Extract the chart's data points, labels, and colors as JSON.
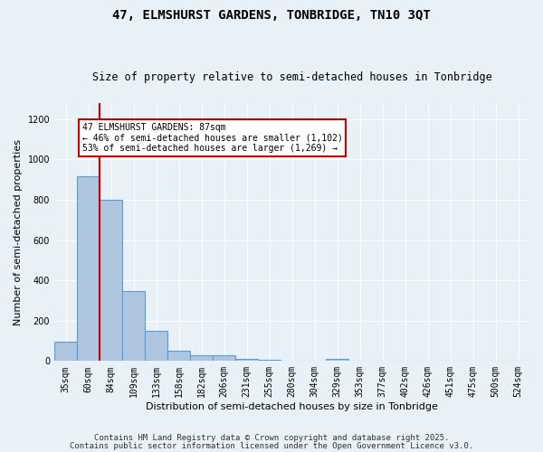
{
  "title": "47, ELMSHURST GARDENS, TONBRIDGE, TN10 3QT",
  "subtitle": "Size of property relative to semi-detached houses in Tonbridge",
  "xlabel": "Distribution of semi-detached houses by size in Tonbridge",
  "ylabel": "Number of semi-detached properties",
  "categories": [
    "35sqm",
    "60sqm",
    "84sqm",
    "109sqm",
    "133sqm",
    "158sqm",
    "182sqm",
    "206sqm",
    "231sqm",
    "255sqm",
    "280sqm",
    "304sqm",
    "329sqm",
    "353sqm",
    "377sqm",
    "402sqm",
    "426sqm",
    "451sqm",
    "475sqm",
    "500sqm",
    "524sqm"
  ],
  "values": [
    95,
    915,
    800,
    345,
    150,
    52,
    30,
    28,
    12,
    8,
    0,
    0,
    10,
    0,
    0,
    0,
    0,
    0,
    0,
    0,
    0
  ],
  "bar_color": "#aec6e0",
  "bar_edge_color": "#5b9bd5",
  "red_line_bin": 2,
  "annotation_title": "47 ELMSHURST GARDENS: 87sqm",
  "annotation_line2": "← 46% of semi-detached houses are smaller (1,102)",
  "annotation_line3": "53% of semi-detached houses are larger (1,269) →",
  "annotation_box_color": "#ffffff",
  "annotation_edge_color": "#cc0000",
  "vline_color": "#cc0000",
  "ylim": [
    0,
    1280
  ],
  "yticks": [
    0,
    200,
    400,
    600,
    800,
    1000,
    1200
  ],
  "footnote1": "Contains HM Land Registry data © Crown copyright and database right 2025.",
  "footnote2": "Contains public sector information licensed under the Open Government Licence v3.0.",
  "bg_color": "#e8f0f8",
  "plot_bg_color": "#e8f0f8",
  "grid_color": "#ffffff",
  "title_fontsize": 10,
  "subtitle_fontsize": 8.5,
  "axis_label_fontsize": 8,
  "tick_fontsize": 7,
  "annotation_fontsize": 7,
  "footnote_fontsize": 6.5
}
